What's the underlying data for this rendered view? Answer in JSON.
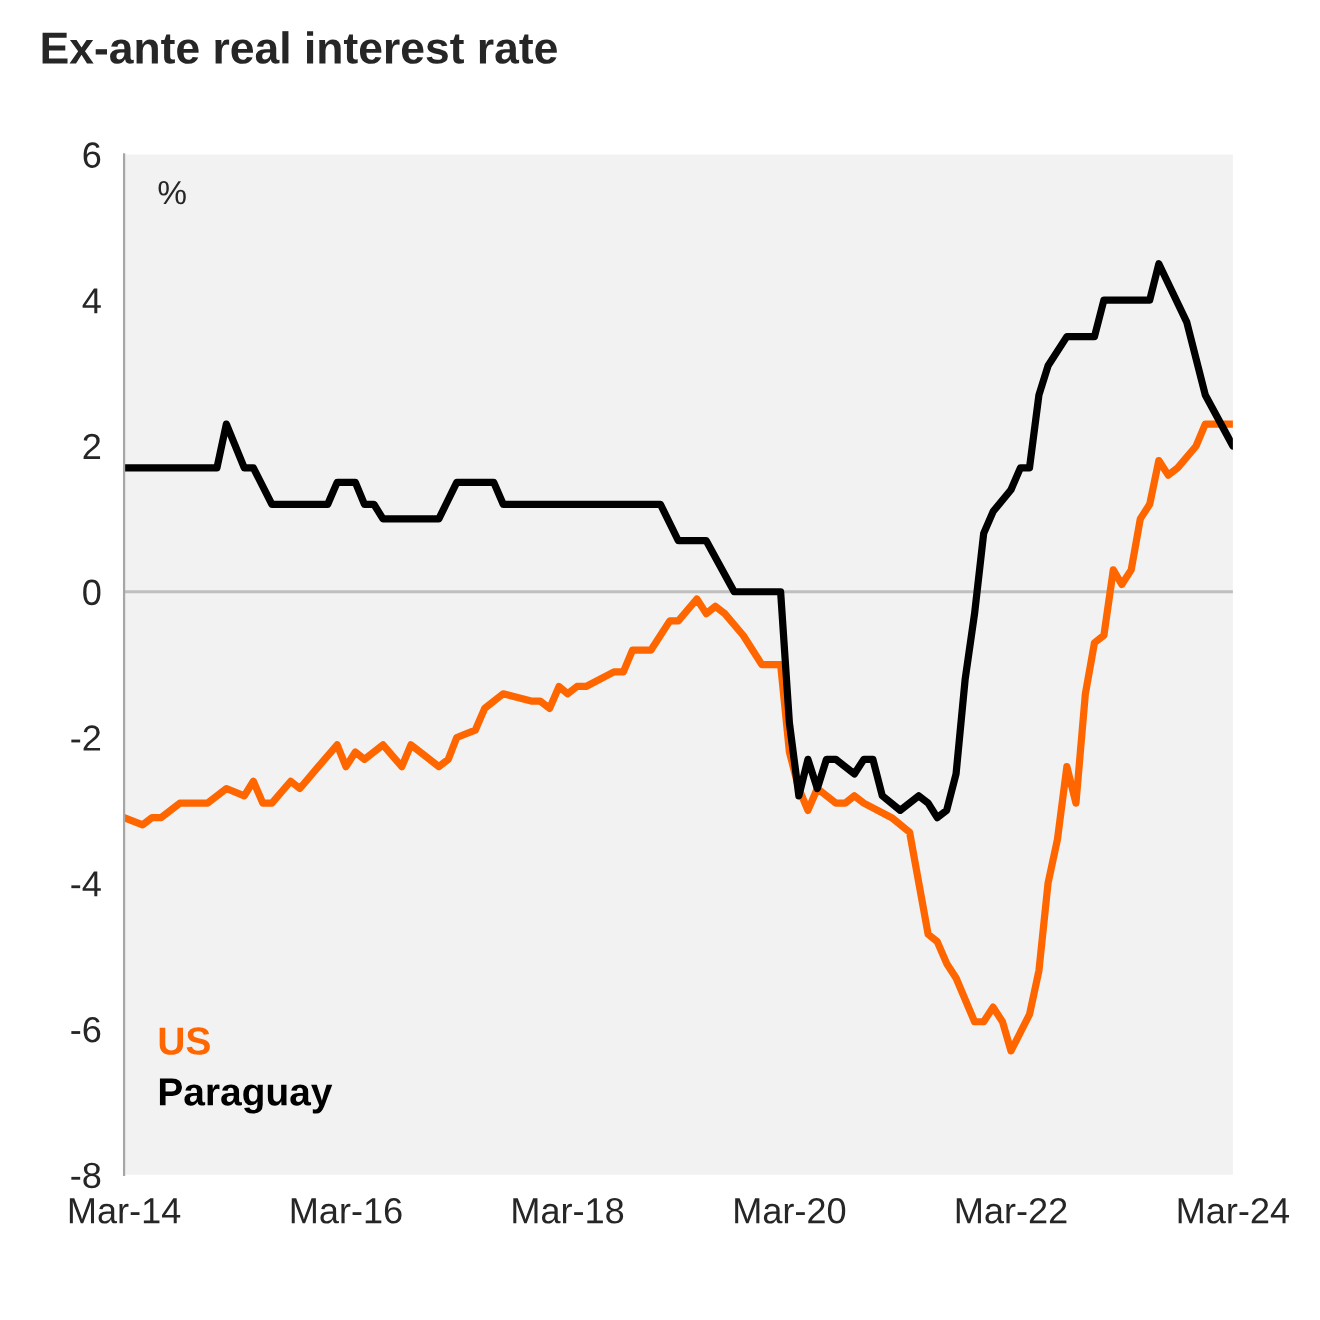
{
  "chart_data": {
    "type": "line",
    "title": "Ex-ante real interest rate",
    "ylabel": "%",
    "xlim": [
      "2014-03",
      "2024-03"
    ],
    "xticks": [
      {
        "value": "2014-03",
        "label": "Mar-14"
      },
      {
        "value": "2016-03",
        "label": "Mar-16"
      },
      {
        "value": "2018-03",
        "label": "Mar-18"
      },
      {
        "value": "2020-03",
        "label": "Mar-20"
      },
      {
        "value": "2022-03",
        "label": "Mar-22"
      },
      {
        "value": "2024-03",
        "label": "Mar-24"
      }
    ],
    "ylim": [
      -8,
      6
    ],
    "yticks": [
      -8,
      -6,
      -4,
      -2,
      0,
      2,
      4,
      6
    ],
    "grid": false,
    "legend": "bottom left",
    "ref_lines": [
      {
        "axis": "y",
        "value": 0,
        "color": "#bfbfbf"
      }
    ],
    "series": [
      {
        "name": "US",
        "color": "#ff6600",
        "x": [
          "2014-03",
          "2014-05",
          "2014-06",
          "2014-07",
          "2014-09",
          "2014-12",
          "2015-02",
          "2015-04",
          "2015-05",
          "2015-06",
          "2015-07",
          "2015-09",
          "2015-10",
          "2015-12",
          "2016-02",
          "2016-03",
          "2016-04",
          "2016-05",
          "2016-07",
          "2016-09",
          "2016-10",
          "2016-11",
          "2017-01",
          "2017-02",
          "2017-03",
          "2017-05",
          "2017-06",
          "2017-08",
          "2017-11",
          "2017-12",
          "2018-01",
          "2018-02",
          "2018-03",
          "2018-04",
          "2018-05",
          "2018-08",
          "2018-09",
          "2018-10",
          "2018-12",
          "2019-02",
          "2019-03",
          "2019-05",
          "2019-06",
          "2019-07",
          "2019-08",
          "2019-10",
          "2019-12",
          "2020-01",
          "2020-02",
          "2020-03",
          "2020-04",
          "2020-05",
          "2020-06",
          "2020-08",
          "2020-09",
          "2020-10",
          "2020-11",
          "2021-02",
          "2021-04",
          "2021-06",
          "2021-07",
          "2021-08",
          "2021-09",
          "2021-11",
          "2021-12",
          "2022-01",
          "2022-02",
          "2022-03",
          "2022-05",
          "2022-06",
          "2022-07",
          "2022-08",
          "2022-09",
          "2022-10",
          "2022-11",
          "2022-12",
          "2023-01",
          "2023-02",
          "2023-03",
          "2023-04",
          "2023-05",
          "2023-06",
          "2023-07",
          "2023-08",
          "2023-09",
          "2023-11",
          "2023-12",
          "2024-03"
        ],
        "values": [
          -3.1,
          -3.2,
          -3.1,
          -3.1,
          -2.9,
          -2.9,
          -2.7,
          -2.8,
          -2.6,
          -2.9,
          -2.9,
          -2.6,
          -2.7,
          -2.4,
          -2.1,
          -2.4,
          -2.2,
          -2.3,
          -2.1,
          -2.4,
          -2.1,
          -2.2,
          -2.4,
          -2.3,
          -2.0,
          -1.9,
          -1.6,
          -1.4,
          -1.5,
          -1.5,
          -1.6,
          -1.3,
          -1.4,
          -1.3,
          -1.3,
          -1.1,
          -1.1,
          -0.8,
          -0.8,
          -0.4,
          -0.4,
          -0.1,
          -0.3,
          -0.2,
          -0.3,
          -0.6,
          -1.0,
          -1.0,
          -1.0,
          -2.2,
          -2.7,
          -3.0,
          -2.7,
          -2.9,
          -2.9,
          -2.8,
          -2.9,
          -3.1,
          -3.3,
          -4.7,
          -4.8,
          -5.1,
          -5.3,
          -5.9,
          -5.9,
          -5.7,
          -5.9,
          -6.3,
          -5.8,
          -5.2,
          -4.0,
          -3.4,
          -2.4,
          -2.9,
          -1.4,
          -0.7,
          -0.6,
          0.3,
          0.1,
          0.3,
          1.0,
          1.2,
          1.8,
          1.6,
          1.7,
          2.0,
          2.3,
          2.3
        ]
      },
      {
        "name": "Paraguay",
        "color": "#000000",
        "x": [
          "2014-03",
          "2015-01",
          "2015-02",
          "2015-04",
          "2015-05",
          "2015-07",
          "2016-01",
          "2016-02",
          "2016-04",
          "2016-05",
          "2016-06",
          "2016-07",
          "2017-01",
          "2017-03",
          "2017-07",
          "2017-08",
          "2019-01",
          "2019-03",
          "2019-06",
          "2019-09",
          "2020-02",
          "2020-03",
          "2020-04",
          "2020-05",
          "2020-06",
          "2020-07",
          "2020-08",
          "2020-10",
          "2020-11",
          "2020-12",
          "2021-01",
          "2021-03",
          "2021-05",
          "2021-06",
          "2021-07",
          "2021-08",
          "2021-09",
          "2021-10",
          "2021-11",
          "2021-12",
          "2022-01",
          "2022-03",
          "2022-04",
          "2022-05",
          "2022-06",
          "2022-07",
          "2022-09",
          "2022-12",
          "2023-01",
          "2023-06",
          "2023-07",
          "2023-10",
          "2023-12",
          "2024-03"
        ],
        "values": [
          1.7,
          1.7,
          2.3,
          1.7,
          1.7,
          1.2,
          1.2,
          1.5,
          1.5,
          1.2,
          1.2,
          1.0,
          1.0,
          1.5,
          1.5,
          1.2,
          1.2,
          0.7,
          0.7,
          0.0,
          0.0,
          -1.8,
          -2.8,
          -2.3,
          -2.7,
          -2.3,
          -2.3,
          -2.5,
          -2.3,
          -2.3,
          -2.8,
          -3.0,
          -2.8,
          -2.9,
          -3.1,
          -3.0,
          -2.5,
          -1.2,
          -0.3,
          0.8,
          1.1,
          1.4,
          1.7,
          1.7,
          2.7,
          3.1,
          3.5,
          3.5,
          4.0,
          4.0,
          4.5,
          3.7,
          2.7,
          2.0
        ]
      }
    ]
  }
}
